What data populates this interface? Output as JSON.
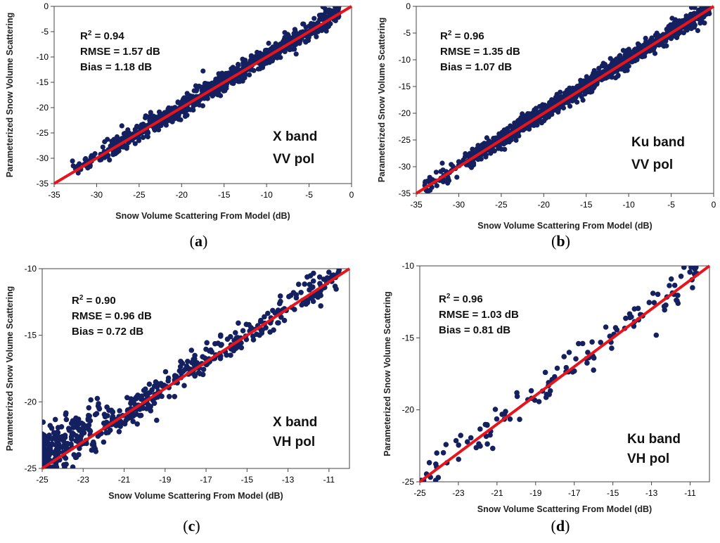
{
  "figure": {
    "marker_color": "#14205f",
    "line_color": "#e8141b"
  },
  "chart_data": [
    {
      "type": "scatter",
      "caption": "a",
      "xlabel": "Snow Volume Scattering From Model (dB)",
      "ylabel": "Parameterized Snow Volume Scattering",
      "xlim": [
        -35,
        0
      ],
      "ylim": [
        -35,
        0
      ],
      "xticks": [
        -35,
        -30,
        -25,
        -20,
        -15,
        -10,
        -5,
        0
      ],
      "yticks": [
        -35,
        -30,
        -25,
        -20,
        -15,
        -10,
        -5,
        0
      ],
      "stats": {
        "r2_label": "R",
        "r2_sup": "2",
        "r2_text": " = 0.94",
        "rmse": "RMSE = 1.57 dB",
        "bias": "Bias = 1.18 dB"
      },
      "band": "X band",
      "pol": "VV pol",
      "n_points": 900,
      "points_summary": {
        "x_range": [
          -33,
          -1.5
        ],
        "fit_offset_db": 1.18,
        "spread_db": 1.57
      },
      "one_to_one_line": [
        [
          -35,
          -35
        ],
        [
          0,
          0
        ]
      ]
    },
    {
      "type": "scatter",
      "caption": "b",
      "xlabel": "Snow Volume Scattering From Model (dB)",
      "ylabel": "Parameterized Snow Volume Scattering",
      "xlim": [
        -35,
        0
      ],
      "ylim": [
        -35,
        0
      ],
      "xticks": [
        -35,
        -30,
        -25,
        -20,
        -15,
        -10,
        -5,
        0
      ],
      "yticks": [
        -35,
        -30,
        -25,
        -20,
        -15,
        -10,
        -5,
        0
      ],
      "stats": {
        "r2_label": "R",
        "r2_sup": "2",
        "r2_text": " = 0.96",
        "rmse": "RMSE = 1.35 dB",
        "bias": "Bias = 1.07 dB"
      },
      "band": "Ku band",
      "pol": "VV pol",
      "n_points": 1100,
      "points_summary": {
        "x_range": [
          -34,
          -0.5
        ],
        "fit_offset_db": 1.07,
        "spread_db": 1.35
      },
      "one_to_one_line": [
        [
          -35,
          -35
        ],
        [
          0,
          0
        ]
      ]
    },
    {
      "type": "scatter",
      "caption": "c",
      "xlabel": "Snow Volume Scattering From Model (dB)",
      "ylabel": "Parameterized Snow Volume Scattering",
      "xlim": [
        -25,
        -10
      ],
      "ylim": [
        -25,
        -10
      ],
      "xticks": [
        -25,
        -23,
        -21,
        -19,
        -17,
        -15,
        -13,
        -11
      ],
      "yticks": [
        -25,
        -20,
        -15,
        -10
      ],
      "stats": {
        "r2_label": "R",
        "r2_sup": "2",
        "r2_text": " = 0.90",
        "rmse": "RMSE = 0.96 dB",
        "bias": "Bias = 0.72 dB"
      },
      "band": "X band",
      "pol": "VH pol",
      "n_points": 550,
      "points_summary": {
        "x_range": [
          -25,
          -10.5
        ],
        "fit_offset_db": 0.72,
        "spread_db": 0.96
      },
      "one_to_one_line": [
        [
          -25,
          -25
        ],
        [
          -10,
          -10
        ]
      ]
    },
    {
      "type": "scatter",
      "caption": "d",
      "xlabel": "Snow Volume Scattering From Model (dB)",
      "ylabel": "Parameterized Snow Volume Scattering",
      "xlim": [
        -25,
        -10
      ],
      "ylim": [
        -25,
        -10
      ],
      "xticks": [
        -25,
        -23,
        -21,
        -19,
        -17,
        -15,
        -13,
        -11
      ],
      "yticks": [
        -25,
        -20,
        -15,
        -10
      ],
      "stats": {
        "r2_label": "R",
        "r2_sup": "2",
        "r2_text": " = 0.96",
        "rmse": "RMSE = 1.03 dB",
        "bias": "Bias = 0.81 dB"
      },
      "band": "Ku band",
      "pol": "VH pol",
      "n_points": 130,
      "points_summary": {
        "x_range": [
          -25,
          -10.5
        ],
        "fit_offset_db": 0.81,
        "spread_db": 1.03
      },
      "one_to_one_line": [
        [
          -25,
          -25
        ],
        [
          -10,
          -10
        ]
      ]
    }
  ]
}
